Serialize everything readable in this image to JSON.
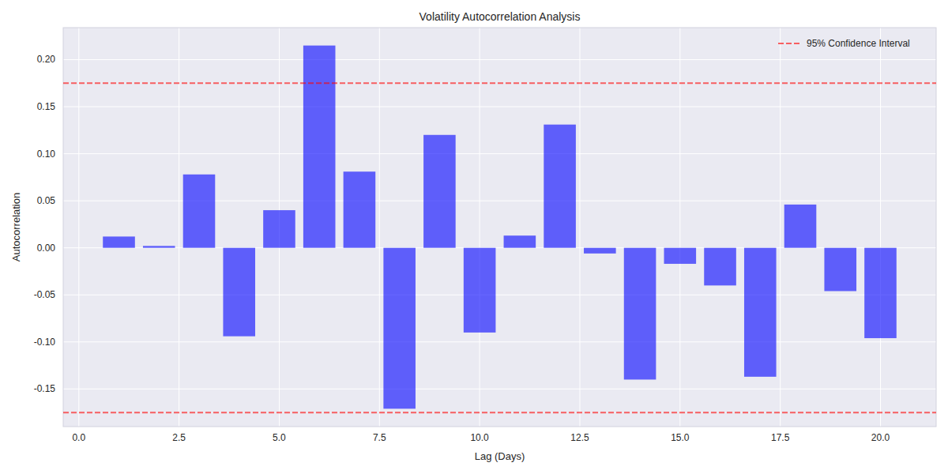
{
  "chart_data": {
    "type": "bar",
    "title": "Volatility Autocorrelation Analysis",
    "x_label": "Lag (Days)",
    "y_label": "Autocorrelation",
    "x": [
      1,
      2,
      3,
      4,
      5,
      6,
      7,
      8,
      9,
      10,
      11,
      12,
      13,
      14,
      15,
      16,
      17,
      18,
      19,
      20
    ],
    "values": [
      0.012,
      0.002,
      0.078,
      -0.094,
      0.04,
      0.215,
      0.081,
      -0.171,
      0.12,
      -0.09,
      0.013,
      0.131,
      -0.006,
      -0.14,
      -0.017,
      -0.04,
      -0.137,
      0.046,
      -0.046,
      -0.096
    ],
    "color": "#0000ff",
    "confidence_interval": {
      "name": "95% Confidence Interval",
      "values": [
        0.175,
        -0.175
      ],
      "color": "#ff0000",
      "line_style": "dashed"
    },
    "xlim": [
      -0.39,
      21.39
    ],
    "ylim": [
      -0.19,
      0.234
    ],
    "xticks": [
      {
        "value": 0,
        "label": "0.0"
      },
      {
        "value": 2.5,
        "label": "2.5"
      },
      {
        "value": 5,
        "label": "5.0"
      },
      {
        "value": 7.5,
        "label": "7.5"
      },
      {
        "value": 10,
        "label": "10.0"
      },
      {
        "value": 12.5,
        "label": "12.5"
      },
      {
        "value": 15,
        "label": "15.0"
      },
      {
        "value": 17.5,
        "label": "17.5"
      },
      {
        "value": 20,
        "label": "20.0"
      }
    ],
    "yticks": [
      {
        "value": -0.15,
        "label": "-0.15"
      },
      {
        "value": -0.1,
        "label": "-0.10"
      },
      {
        "value": -0.05,
        "label": "-0.05"
      },
      {
        "value": 0,
        "label": "0.00"
      },
      {
        "value": 0.05,
        "label": "0.05"
      },
      {
        "value": 0.1,
        "label": "0.10"
      },
      {
        "value": 0.15,
        "label": "0.15"
      },
      {
        "value": 0.2,
        "label": "0.20"
      }
    ],
    "grid": true,
    "legend": "upper right"
  }
}
